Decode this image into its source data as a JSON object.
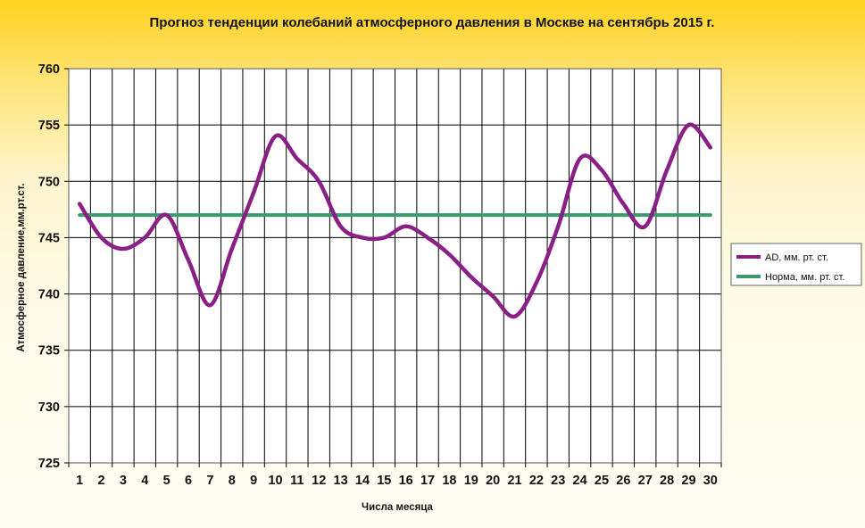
{
  "chart_data": {
    "type": "line",
    "title": "Прогноз тенденции колебаний атмосферного давления в Москве на сентябрь 2015 г.",
    "xlabel": "Числа месяца",
    "ylabel": "Атмосферное давление,мм.рт.ст.",
    "x": [
      1,
      2,
      3,
      4,
      5,
      6,
      7,
      8,
      9,
      10,
      11,
      12,
      13,
      14,
      15,
      16,
      17,
      18,
      19,
      20,
      21,
      22,
      23,
      24,
      25,
      26,
      27,
      28,
      29,
      30
    ],
    "x_tick_labels": [
      "1",
      "2",
      "3",
      "4",
      "5",
      "6",
      "7",
      "8",
      "9",
      "10",
      "11",
      "12",
      "13",
      "14",
      "15",
      "16",
      "17",
      "18",
      "19",
      "20",
      "21",
      "22",
      "23",
      "24",
      "25",
      "26",
      "27",
      "28",
      "29",
      "30"
    ],
    "ylim": [
      725,
      760
    ],
    "y_ticks": [
      725,
      730,
      735,
      740,
      745,
      750,
      755,
      760
    ],
    "y_tick_labels": [
      "725",
      "730",
      "735",
      "740",
      "745",
      "750",
      "755",
      "760"
    ],
    "grid": true,
    "legend_position": "right",
    "series": [
      {
        "name": "AD, мм. рт. ст.",
        "color": "#8a1f86",
        "smooth": true,
        "values": [
          748,
          745,
          744,
          745,
          747,
          743,
          739,
          744,
          749,
          754,
          752,
          750,
          746,
          745,
          745,
          746,
          745,
          743.5,
          741.5,
          739.8,
          738,
          741,
          746,
          752,
          751,
          748,
          746,
          751,
          755,
          753
        ]
      },
      {
        "name": "Норма, мм. рт. ст.",
        "color": "#3a9a6e",
        "smooth": false,
        "values": [
          747,
          747,
          747,
          747,
          747,
          747,
          747,
          747,
          747,
          747,
          747,
          747,
          747,
          747,
          747,
          747,
          747,
          747,
          747,
          747,
          747,
          747,
          747,
          747,
          747,
          747,
          747,
          747,
          747,
          747
        ]
      }
    ]
  }
}
